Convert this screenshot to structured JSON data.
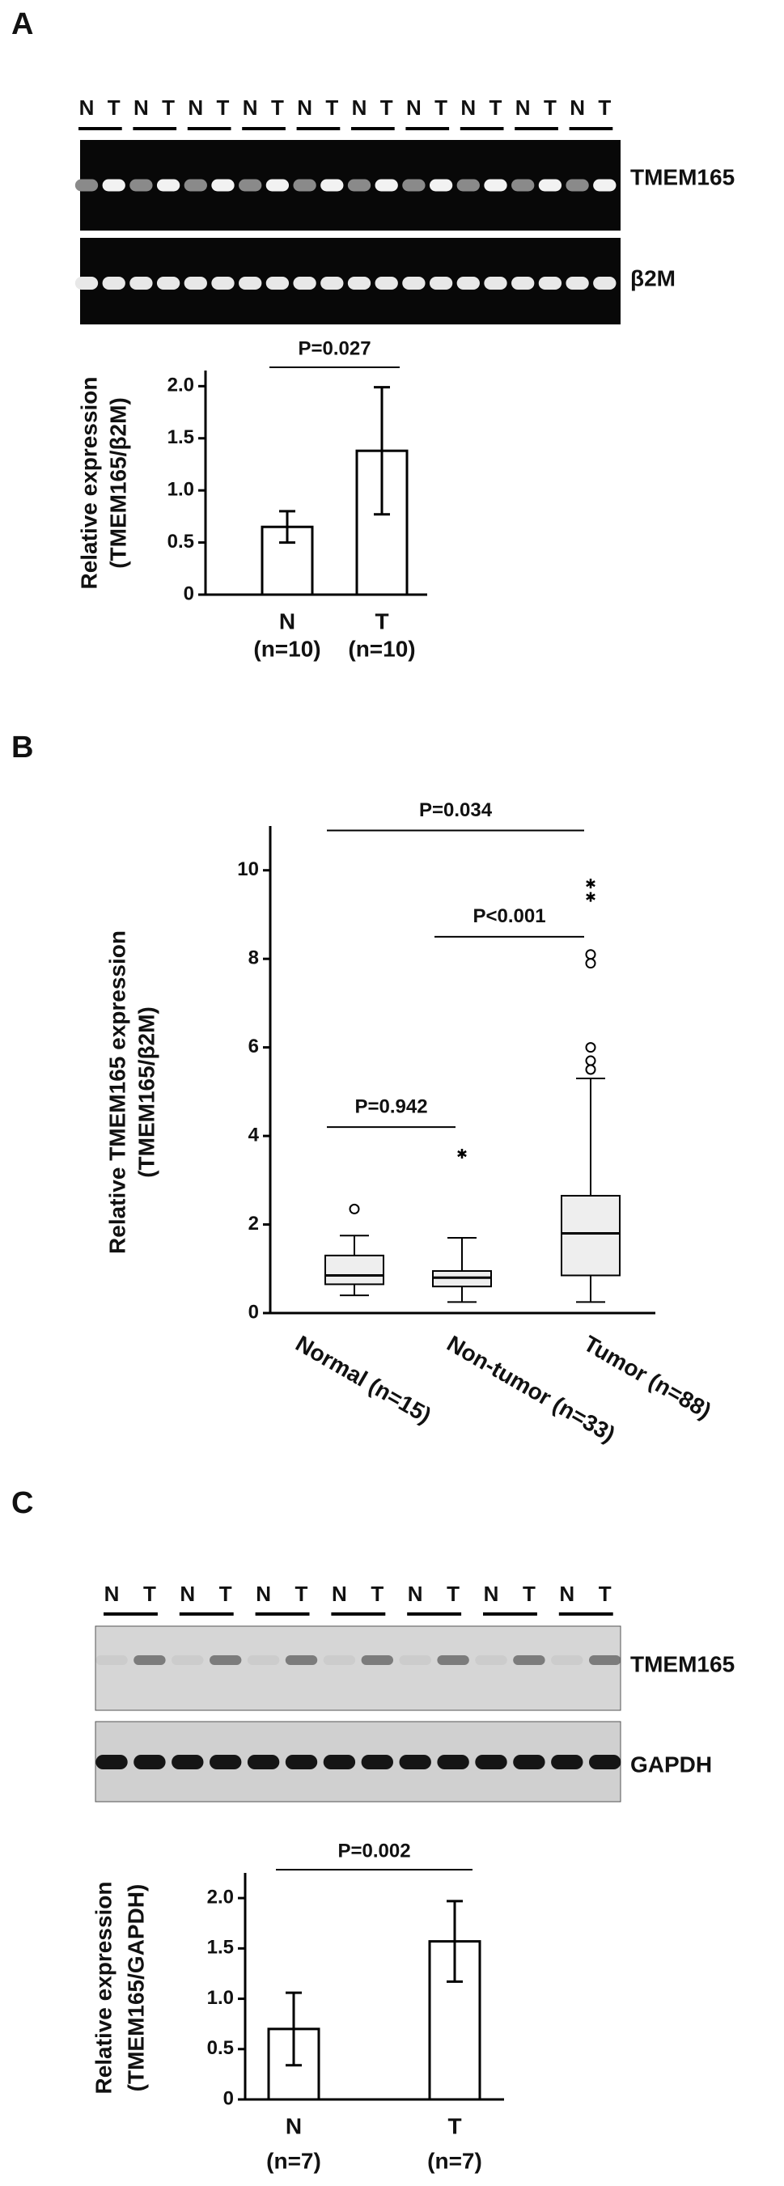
{
  "figure": {
    "panels": [
      "A",
      "B",
      "C"
    ]
  },
  "blots": [
    {
      "lanes": [
        "N",
        "T",
        "N",
        "T",
        "N",
        "T",
        "N",
        "T",
        "N",
        "T",
        "N",
        "T",
        "N",
        "T",
        "N",
        "T",
        "N",
        "T",
        "N",
        "T"
      ],
      "labels": [
        "TMEM165",
        "β2M"
      ]
    },
    {
      "lanes": [
        "N",
        "T",
        "N",
        "T",
        "N",
        "T",
        "N",
        "T",
        "N",
        "T",
        "N",
        "T",
        "N",
        "T"
      ],
      "labels": [
        "TMEM165",
        "GAPDH"
      ]
    }
  ],
  "chart_data": [
    {
      "type": "bar",
      "ylabel": [
        "Relative expression",
        "(TMEM165/β2M)"
      ],
      "categories": [
        "N",
        "T"
      ],
      "sublabels": [
        "(n=10)",
        "(n=10)"
      ],
      "values": [
        0.65,
        1.38
      ],
      "errors": [
        0.15,
        0.61
      ],
      "color": "#ffffff",
      "ylim": [
        0,
        2.15
      ],
      "yticks": [
        0,
        0.5,
        {
          "value": 1,
          "label": "1.0"
        },
        1.5,
        {
          "value": 2,
          "label": "2.0"
        }
      ],
      "annotations": [
        {
          "text": "P=0.027"
        }
      ]
    },
    {
      "type": "box",
      "ylabel": [
        "Relative TMEM165 expression",
        "(TMEM165/β2M)"
      ],
      "categories": [
        "Normal (n=15)",
        "Non-tumor (n=33)",
        "Tumor  (n=88)"
      ],
      "color": "#eeeeee",
      "boxes": [
        {
          "whislo": 0.4,
          "q1": 0.65,
          "med": 0.85,
          "q3": 1.3,
          "whishi": 1.75,
          "outliers": [
            2.35
          ]
        },
        {
          "whislo": 0.25,
          "q1": 0.6,
          "med": 0.8,
          "q3": 0.95,
          "whishi": 1.7,
          "extremes": [
            3.6
          ]
        },
        {
          "whislo": 0.25,
          "q1": 0.85,
          "med": 1.8,
          "q3": 2.65,
          "whishi": 5.3,
          "outliers": [
            8.1,
            7.9,
            6.0,
            5.7,
            5.5
          ],
          "extremes": [
            9.7,
            9.4
          ]
        }
      ],
      "ylim": [
        0,
        11
      ],
      "yticks": [
        0,
        2,
        4,
        6,
        8,
        10
      ],
      "annotations": [
        {
          "text": "P=0.942",
          "between": [
            0,
            1
          ],
          "y": 4.2
        },
        {
          "text": "P<0.001",
          "between": [
            1,
            2
          ],
          "y": 8.5
        },
        {
          "text": "P=0.034",
          "between": [
            0,
            2
          ],
          "y": 10.9
        }
      ]
    },
    {
      "type": "bar",
      "ylabel": [
        "Relative expression",
        "(TMEM165/GAPDH)"
      ],
      "categories": [
        "N",
        "T"
      ],
      "sublabels": [
        "(n=7)",
        "(n=7)"
      ],
      "values": [
        0.7,
        1.57
      ],
      "errors": [
        0.36,
        0.4
      ],
      "color": "#ffffff",
      "ylim": [
        0,
        2.25
      ],
      "yticks": [
        0,
        0.5,
        {
          "value": 1,
          "label": "1.0"
        },
        1.5,
        {
          "value": 2,
          "label": "2.0"
        }
      ],
      "annotations": [
        {
          "text": "P=0.002"
        }
      ]
    }
  ]
}
